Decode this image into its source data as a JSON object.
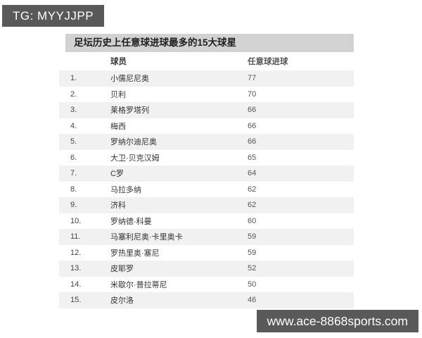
{
  "tg_badge": {
    "label": "TG: MYYJJPP"
  },
  "footer": {
    "url": "www.ace-8868sports.com"
  },
  "chart_data": {
    "type": "table",
    "title": "足坛历史上任意球进球最多的15大球星",
    "columns": [
      "球员",
      "任意球进球"
    ],
    "rows": [
      {
        "rank": "1.",
        "player": "小儒尼尼奥",
        "goals": 77
      },
      {
        "rank": "2.",
        "player": "贝利",
        "goals": 70
      },
      {
        "rank": "3.",
        "player": "莱格罗塔列",
        "goals": 66
      },
      {
        "rank": "4.",
        "player": "梅西",
        "goals": 66
      },
      {
        "rank": "5.",
        "player": "罗纳尔迪尼奥",
        "goals": 66
      },
      {
        "rank": "6.",
        "player": "大卫·贝克汉姆",
        "goals": 65
      },
      {
        "rank": "7.",
        "player": "C罗",
        "goals": 64
      },
      {
        "rank": "8.",
        "player": "马拉多纳",
        "goals": 62
      },
      {
        "rank": "9.",
        "player": "济科",
        "goals": 62
      },
      {
        "rank": "10.",
        "player": "罗纳德·科曼",
        "goals": 60
      },
      {
        "rank": "11.",
        "player": "马塞利尼奥·卡里奥卡",
        "goals": 59
      },
      {
        "rank": "12.",
        "player": "罗热里奥·塞尼",
        "goals": 59
      },
      {
        "rank": "13.",
        "player": "皮耶罗",
        "goals": 52
      },
      {
        "rank": "14.",
        "player": "米歇尔·普拉蒂尼",
        "goals": 50
      },
      {
        "rank": "15.",
        "player": "皮尔洛",
        "goals": 46
      }
    ]
  },
  "colors": {
    "accent_dark": "#595959",
    "title_bar": "#d2d2d2",
    "stripe": "#f1f1f1"
  }
}
